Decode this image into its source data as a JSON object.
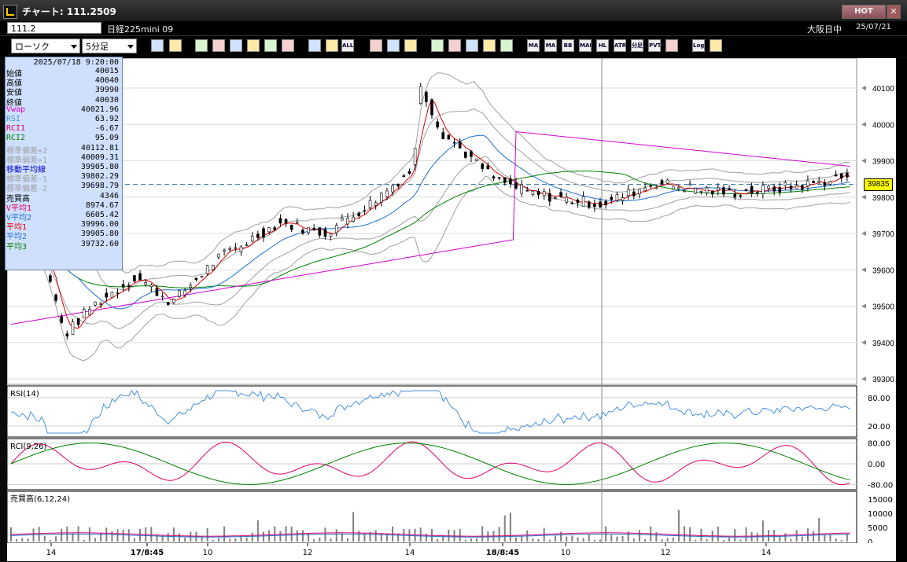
{
  "window": {
    "title": "チャート: 111.2509",
    "hot_label": "HOT",
    "close_label": "✕"
  },
  "infobar": {
    "code": "111.2",
    "instrument": "日経225mini 09",
    "market": "大阪日中",
    "date": "25/07/21"
  },
  "toolbar": {
    "chart_type": "ローソク",
    "period": "5分足",
    "buttons": [
      "magnify-icon",
      "window-icon",
      "pencil-icon",
      "eraser-icon",
      "pointer-icon",
      "undo-icon",
      "list-icon",
      "trash-icon",
      "candle-icon",
      "compare-icon",
      "ALL",
      "tools-icon",
      "brush-icon",
      "color-icon",
      "down-icon",
      "search-icon",
      "grid-icon",
      "flag-icon",
      "info-icon",
      "MA",
      "MA",
      "BB",
      "MAE",
      "HL",
      "ATR",
      "分足",
      "PVT",
      "box-icon",
      "Log",
      "exit-icon"
    ]
  },
  "data_window": {
    "datetime": "2025/07/18  9:20:00",
    "rows": [
      {
        "label": "始値",
        "value": "40015",
        "color": "#000000"
      },
      {
        "label": "高値",
        "value": "40040",
        "color": "#000000"
      },
      {
        "label": "安値",
        "value": "39990",
        "color": "#000000"
      },
      {
        "label": "終値",
        "value": "40030",
        "color": "#000000"
      },
      {
        "label": "Vwap",
        "value": "40021.96",
        "color": "#d000d0"
      },
      {
        "label": "RSI",
        "value": "63.92",
        "color": "#4a90e2"
      },
      {
        "label": "RCI1",
        "value": "-6.67",
        "color": "#e0006a"
      },
      {
        "label": "RCI2",
        "value": "95.09",
        "color": "#008000"
      },
      {
        "label": "標準偏差+2",
        "value": "40112.81",
        "color": "#a0a0a0"
      },
      {
        "label": "標準偏差+1",
        "value": "40009.31",
        "color": "#a0a0a0"
      },
      {
        "label": "移動平均線",
        "value": "39905.80",
        "color": "#0000c0"
      },
      {
        "label": "標準偏差-1",
        "value": "39802.29",
        "color": "#a0a0a0"
      },
      {
        "label": "標準偏差-2",
        "value": "39698.79",
        "color": "#a0a0a0"
      },
      {
        "label": "売買高",
        "value": "4346",
        "color": "#000000"
      },
      {
        "label": "V平均1",
        "value": "8974.67",
        "color": "#e00060"
      },
      {
        "label": "V平均2",
        "value": "6605.42",
        "color": "#1f6fd0"
      },
      {
        "label": "平均1",
        "value": "39996.00",
        "color": "#e00000"
      },
      {
        "label": "平均2",
        "value": "39905.80",
        "color": "#1f6fd0"
      },
      {
        "label": "平均3",
        "value": "39732.60",
        "color": "#008000"
      }
    ]
  },
  "price_axis": {
    "ticks": [
      "40100",
      "40000",
      "39900",
      "39800",
      "39700",
      "39600",
      "39500",
      "39400",
      "39300"
    ],
    "current": "39835"
  },
  "panels": {
    "rsi": {
      "title": "RSI(14)",
      "ticks": [
        "80.00",
        "20.00"
      ]
    },
    "rci": {
      "title": "RCI(9,26)",
      "ticks": [
        "80.00",
        "0.00",
        "-80.00"
      ]
    },
    "volume": {
      "title": "売買高(6,12,24)",
      "ticks": [
        "15000",
        "10000",
        "5000",
        "0"
      ]
    }
  },
  "time_axis": [
    "14",
    "17/8:45",
    "10",
    "12",
    "14",
    "18/8:45",
    "10",
    "12",
    "14"
  ],
  "colors": {
    "up": "#ffffff",
    "down": "#000000",
    "ma1": "#e00000",
    "ma2": "#1f6fd0",
    "ma3": "#008000",
    "vwap": "#d000d0",
    "bands": "#a0a0a0",
    "rsi": "#4a90e2",
    "rci1": "#e0006a",
    "rci2": "#008000"
  }
}
